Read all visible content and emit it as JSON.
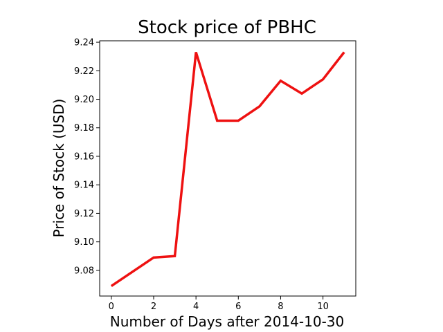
{
  "chart_data": {
    "type": "line",
    "title": "Stock price of PBHC",
    "xlabel": "Number of Days after 2014-10-30",
    "ylabel": "Price of Stock (USD)",
    "xlim": [
      -0.55,
      11.55
    ],
    "ylim": [
      9.062,
      9.241
    ],
    "xticks": [
      0,
      2,
      4,
      6,
      8,
      10
    ],
    "yticks": [
      9.08,
      9.1,
      9.12,
      9.14,
      9.16,
      9.18,
      9.2,
      9.22,
      9.24
    ],
    "grid": false,
    "series": [
      {
        "color": "#ee1111",
        "x": [
          0,
          1,
          2,
          3,
          4,
          5,
          6,
          7,
          8,
          9,
          10,
          11
        ],
        "y": [
          9.069,
          9.079,
          9.089,
          9.09,
          9.233,
          9.185,
          9.185,
          9.195,
          9.213,
          9.204,
          9.214,
          9.233
        ]
      }
    ]
  }
}
